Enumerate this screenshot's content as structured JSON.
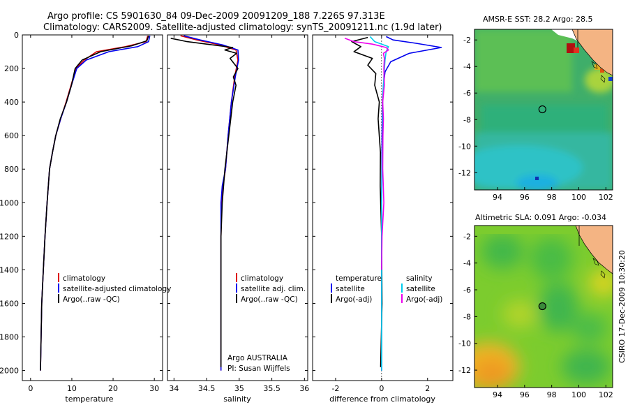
{
  "header": {
    "line1": "Argo profile: CS 5901630_84 09-Dec-2009 20091209_188 7.226S 97.313E",
    "line2": "Climatology: CARS2009. Satellite-adjusted climatology: synTS_20091211.nc (1.9d later)"
  },
  "stamp": "CSIRO 17-Dec-2009 10:30:20",
  "colors": {
    "climatology": "#dd0000",
    "satellite": "#0000ee",
    "argo": "#000000",
    "sat_sal": "#00ccee",
    "argo_sal": "#ee00ee"
  },
  "chart_data": [
    {
      "type": "line",
      "name": "temperature",
      "xlabel": "temperature",
      "xlim": [
        -2,
        32
      ],
      "ylim": [
        0,
        2060
      ],
      "xticks": [
        "0",
        "10",
        "20",
        "30"
      ],
      "xtick_values": [
        0,
        10,
        20,
        30
      ],
      "yticks": [
        "0",
        "200",
        "400",
        "600",
        "800",
        "1000",
        "1200",
        "1400",
        "1600",
        "1800",
        "2000"
      ],
      "legend": [
        "climatology",
        "satellite-adjusted climatology",
        "Argo(..raw -QC)"
      ],
      "series": [
        {
          "name": "climatology",
          "color": "#dd0000",
          "x": [
            28.4,
            28.0,
            23.0,
            16.0,
            13.0,
            11.0,
            9.8,
            8.6,
            7.3,
            6.1,
            5.3,
            4.6,
            4.0,
            3.5,
            3.1,
            2.7,
            2.4
          ],
          "y": [
            5,
            40,
            70,
            100,
            150,
            200,
            300,
            400,
            500,
            600,
            700,
            800,
            1000,
            1200,
            1400,
            1600,
            2000
          ]
        },
        {
          "name": "satellite-adjusted climatology",
          "color": "#0000ee",
          "x": [
            28.9,
            28.6,
            26.0,
            19.0,
            13.5,
            11.2,
            9.9,
            8.7,
            7.3,
            6.1,
            5.3,
            4.6,
            4.0,
            3.5,
            3.1,
            2.7,
            2.4
          ],
          "y": [
            5,
            40,
            70,
            100,
            150,
            200,
            300,
            400,
            500,
            600,
            700,
            800,
            1000,
            1200,
            1400,
            1600,
            2000
          ]
        },
        {
          "name": "Argo(..raw -QC)",
          "color": "#000000",
          "x": [
            28.6,
            28.2,
            24.5,
            17.0,
            12.5,
            10.8,
            9.9,
            8.7,
            7.2,
            6.1,
            5.3,
            4.6,
            4.0,
            3.5,
            3.1,
            2.7,
            2.4
          ],
          "y": [
            5,
            35,
            65,
            100,
            150,
            200,
            300,
            400,
            500,
            600,
            700,
            800,
            1000,
            1200,
            1400,
            1600,
            2000
          ]
        }
      ]
    },
    {
      "type": "line",
      "name": "salinity",
      "xlabel": "salinity",
      "xlim": [
        33.9,
        36.05
      ],
      "ylim": [
        0,
        2060
      ],
      "xticks": [
        "34",
        "34.5",
        "35",
        "35.5",
        "36"
      ],
      "xtick_values": [
        34,
        34.5,
        35,
        35.5,
        36
      ],
      "legend": [
        "climatology",
        "satellite adj. clim.",
        "Argo(..raw -QC)"
      ],
      "annotation": [
        "Argo AUSTRALIA",
        "PI: Susan Wijffels"
      ],
      "series": [
        {
          "name": "climatology",
          "color": "#dd0000",
          "x": [
            34.1,
            34.35,
            34.7,
            34.95,
            34.98,
            34.93,
            34.88,
            34.83,
            34.79,
            34.75,
            34.73,
            34.72,
            34.72,
            34.72,
            34.72,
            34.72
          ],
          "y": [
            5,
            30,
            60,
            90,
            150,
            250,
            400,
            600,
            800,
            900,
            1000,
            1200,
            1400,
            1600,
            1800,
            2000
          ]
        },
        {
          "name": "satellite adj. clim.",
          "color": "#0000ee",
          "x": [
            34.15,
            34.4,
            34.75,
            34.98,
            34.99,
            34.94,
            34.88,
            34.83,
            34.79,
            34.74,
            34.72,
            34.72,
            34.72,
            34.72,
            34.72,
            34.72
          ],
          "y": [
            5,
            30,
            60,
            90,
            150,
            250,
            400,
            600,
            800,
            900,
            1000,
            1200,
            1400,
            1600,
            1800,
            2000
          ]
        },
        {
          "name": "Argo(..raw -QC)",
          "color": "#000000",
          "x": [
            33.95,
            34.2,
            34.5,
            34.9,
            34.78,
            34.96,
            34.86,
            34.98,
            34.91,
            34.95,
            34.9,
            34.87,
            34.84,
            34.78,
            34.74,
            34.72,
            34.72,
            34.72,
            34.72,
            34.72
          ],
          "y": [
            20,
            40,
            55,
            75,
            90,
            110,
            140,
            200,
            250,
            300,
            400,
            500,
            600,
            800,
            1000,
            1200,
            1400,
            1600,
            1800,
            1980
          ]
        }
      ]
    },
    {
      "type": "line",
      "name": "difference",
      "xlabel": "difference from climatology",
      "xlim": [
        -3,
        3.1
      ],
      "ylim": [
        0,
        2060
      ],
      "xticks": [
        "-2",
        "0",
        "2"
      ],
      "xtick_values": [
        -2,
        0,
        2
      ],
      "legend_temperature": [
        "temperature",
        "satellite",
        "Argo(-adj)"
      ],
      "legend_salinity": [
        "salinity",
        "satellite",
        "Argo(-adj)"
      ],
      "series": [
        {
          "name": "temperature satellite",
          "color": "#0000ee",
          "x": [
            0.2,
            0.5,
            1.5,
            2.6,
            1.2,
            0.4,
            0.15,
            0.08,
            0.04,
            0.02,
            0.01,
            0,
            0,
            0,
            0
          ],
          "y": [
            10,
            30,
            50,
            75,
            110,
            160,
            220,
            300,
            400,
            600,
            800,
            1000,
            1400,
            1800,
            2000
          ]
        },
        {
          "name": "temperature Argo(-adj)",
          "color": "#000000",
          "x": [
            -0.6,
            -1.3,
            -0.9,
            -1.2,
            -0.4,
            -0.6,
            -0.25,
            -0.3,
            -0.1,
            -0.15,
            -0.05,
            -0.06,
            0,
            0.02,
            -0.04
          ],
          "y": [
            15,
            40,
            70,
            100,
            140,
            180,
            230,
            300,
            400,
            500,
            700,
            900,
            1200,
            1600,
            1980
          ]
        },
        {
          "name": "salinity satellite",
          "color": "#00ccee",
          "x": [
            -0.5,
            -0.3,
            0.3,
            0.2,
            0.15,
            0.1,
            0.05,
            0.05,
            0.02,
            0,
            0,
            0,
            0
          ],
          "y": [
            10,
            40,
            70,
            100,
            150,
            250,
            400,
            600,
            800,
            1000,
            1400,
            1800,
            2000
          ]
        },
        {
          "name": "salinity Argo(-adj)",
          "color": "#ee00ee",
          "x": [
            -1.6,
            -1.2,
            -0.4,
            0.2,
            0.3,
            0.08,
            0.12,
            0.1,
            0.12,
            0.05,
            0.08,
            0.06,
            0.05,
            0.1,
            0.02,
            0
          ],
          "y": [
            20,
            40,
            55,
            75,
            90,
            110,
            140,
            200,
            300,
            400,
            500,
            600,
            800,
            1000,
            1200,
            1400
          ]
        }
      ]
    },
    {
      "type": "heatmap",
      "name": "sst-map",
      "title": "AMSR-E SST: 28.2  Argo: 28.5",
      "xlim": [
        92.3,
        102.5
      ],
      "ylim": [
        -13.3,
        -1.2
      ],
      "xticks": [
        "94",
        "96",
        "98",
        "100",
        "102"
      ],
      "xtick_values": [
        94,
        96,
        98,
        100,
        102
      ],
      "yticks": [
        "-2",
        "-4",
        "-6",
        "-8",
        "-10",
        "-12"
      ],
      "ytick_values": [
        -2,
        -4,
        -6,
        -8,
        -10,
        -12
      ],
      "argo_position": {
        "lon": 97.313,
        "lat": -7.226
      }
    },
    {
      "type": "heatmap",
      "name": "sla-map",
      "title": "Altimetric SLA: 0.091  Argo: -0.034",
      "xlim": [
        92.3,
        102.5
      ],
      "ylim": [
        -13.3,
        -1.2
      ],
      "xticks": [
        "94",
        "96",
        "98",
        "100",
        "102"
      ],
      "xtick_values": [
        94,
        96,
        98,
        100,
        102
      ],
      "yticks": [
        "-2",
        "-4",
        "-6",
        "-8",
        "-10",
        "-12"
      ],
      "ytick_values": [
        -2,
        -4,
        -6,
        -8,
        -10,
        -12
      ],
      "argo_position": {
        "lon": 97.313,
        "lat": -7.226
      }
    }
  ]
}
